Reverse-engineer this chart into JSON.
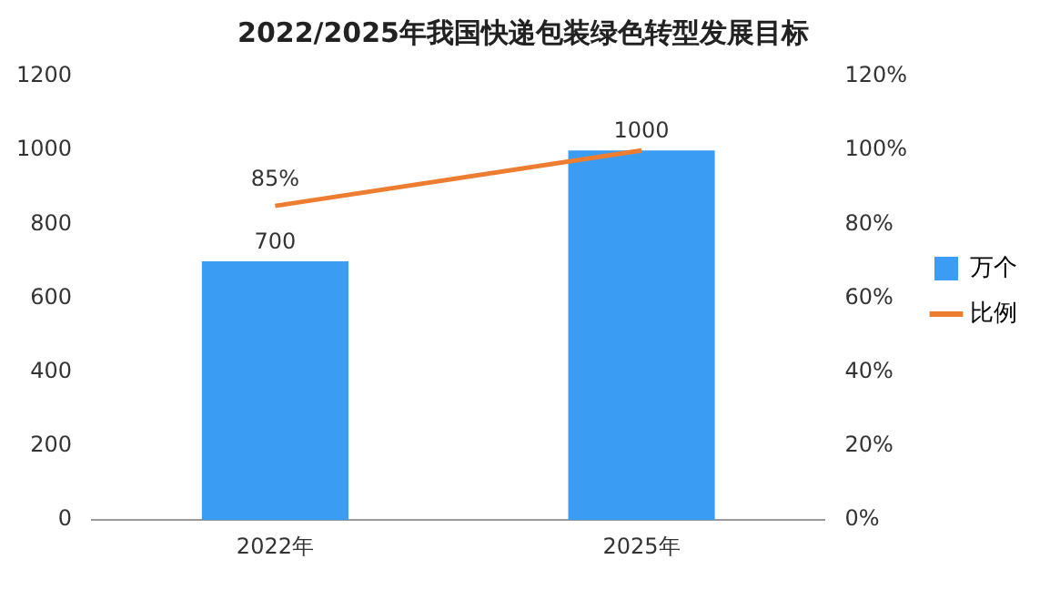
{
  "chart_data": {
    "type": "bar",
    "title": "2022/2025年我国快递包装绿色转型发展目标",
    "categories": [
      "2022年",
      "2025年"
    ],
    "series": [
      {
        "name": "万个",
        "color": "#3b9cf4",
        "values": [
          700,
          1000
        ],
        "value_labels": [
          "700",
          "1000"
        ]
      },
      {
        "name": "比例",
        "type": "line",
        "axis": "y2",
        "color": "#ed7d31",
        "values": [
          85,
          100
        ],
        "value_labels": [
          "85%",
          null
        ]
      }
    ],
    "ylim": [
      0,
      1200
    ],
    "yticks": [
      0,
      200,
      400,
      600,
      800,
      1000,
      1200
    ],
    "y2lim": [
      0,
      120
    ],
    "y2ticks": [
      {
        "value": 0,
        "label": "0%"
      },
      {
        "value": 20,
        "label": "20%"
      },
      {
        "value": 40,
        "label": "40%"
      },
      {
        "value": 60,
        "label": "60%"
      },
      {
        "value": 80,
        "label": "80%"
      },
      {
        "value": 100,
        "label": "100%"
      },
      {
        "value": 120,
        "label": "120%"
      }
    ],
    "grid": false,
    "legend": "right",
    "marker": "none"
  }
}
